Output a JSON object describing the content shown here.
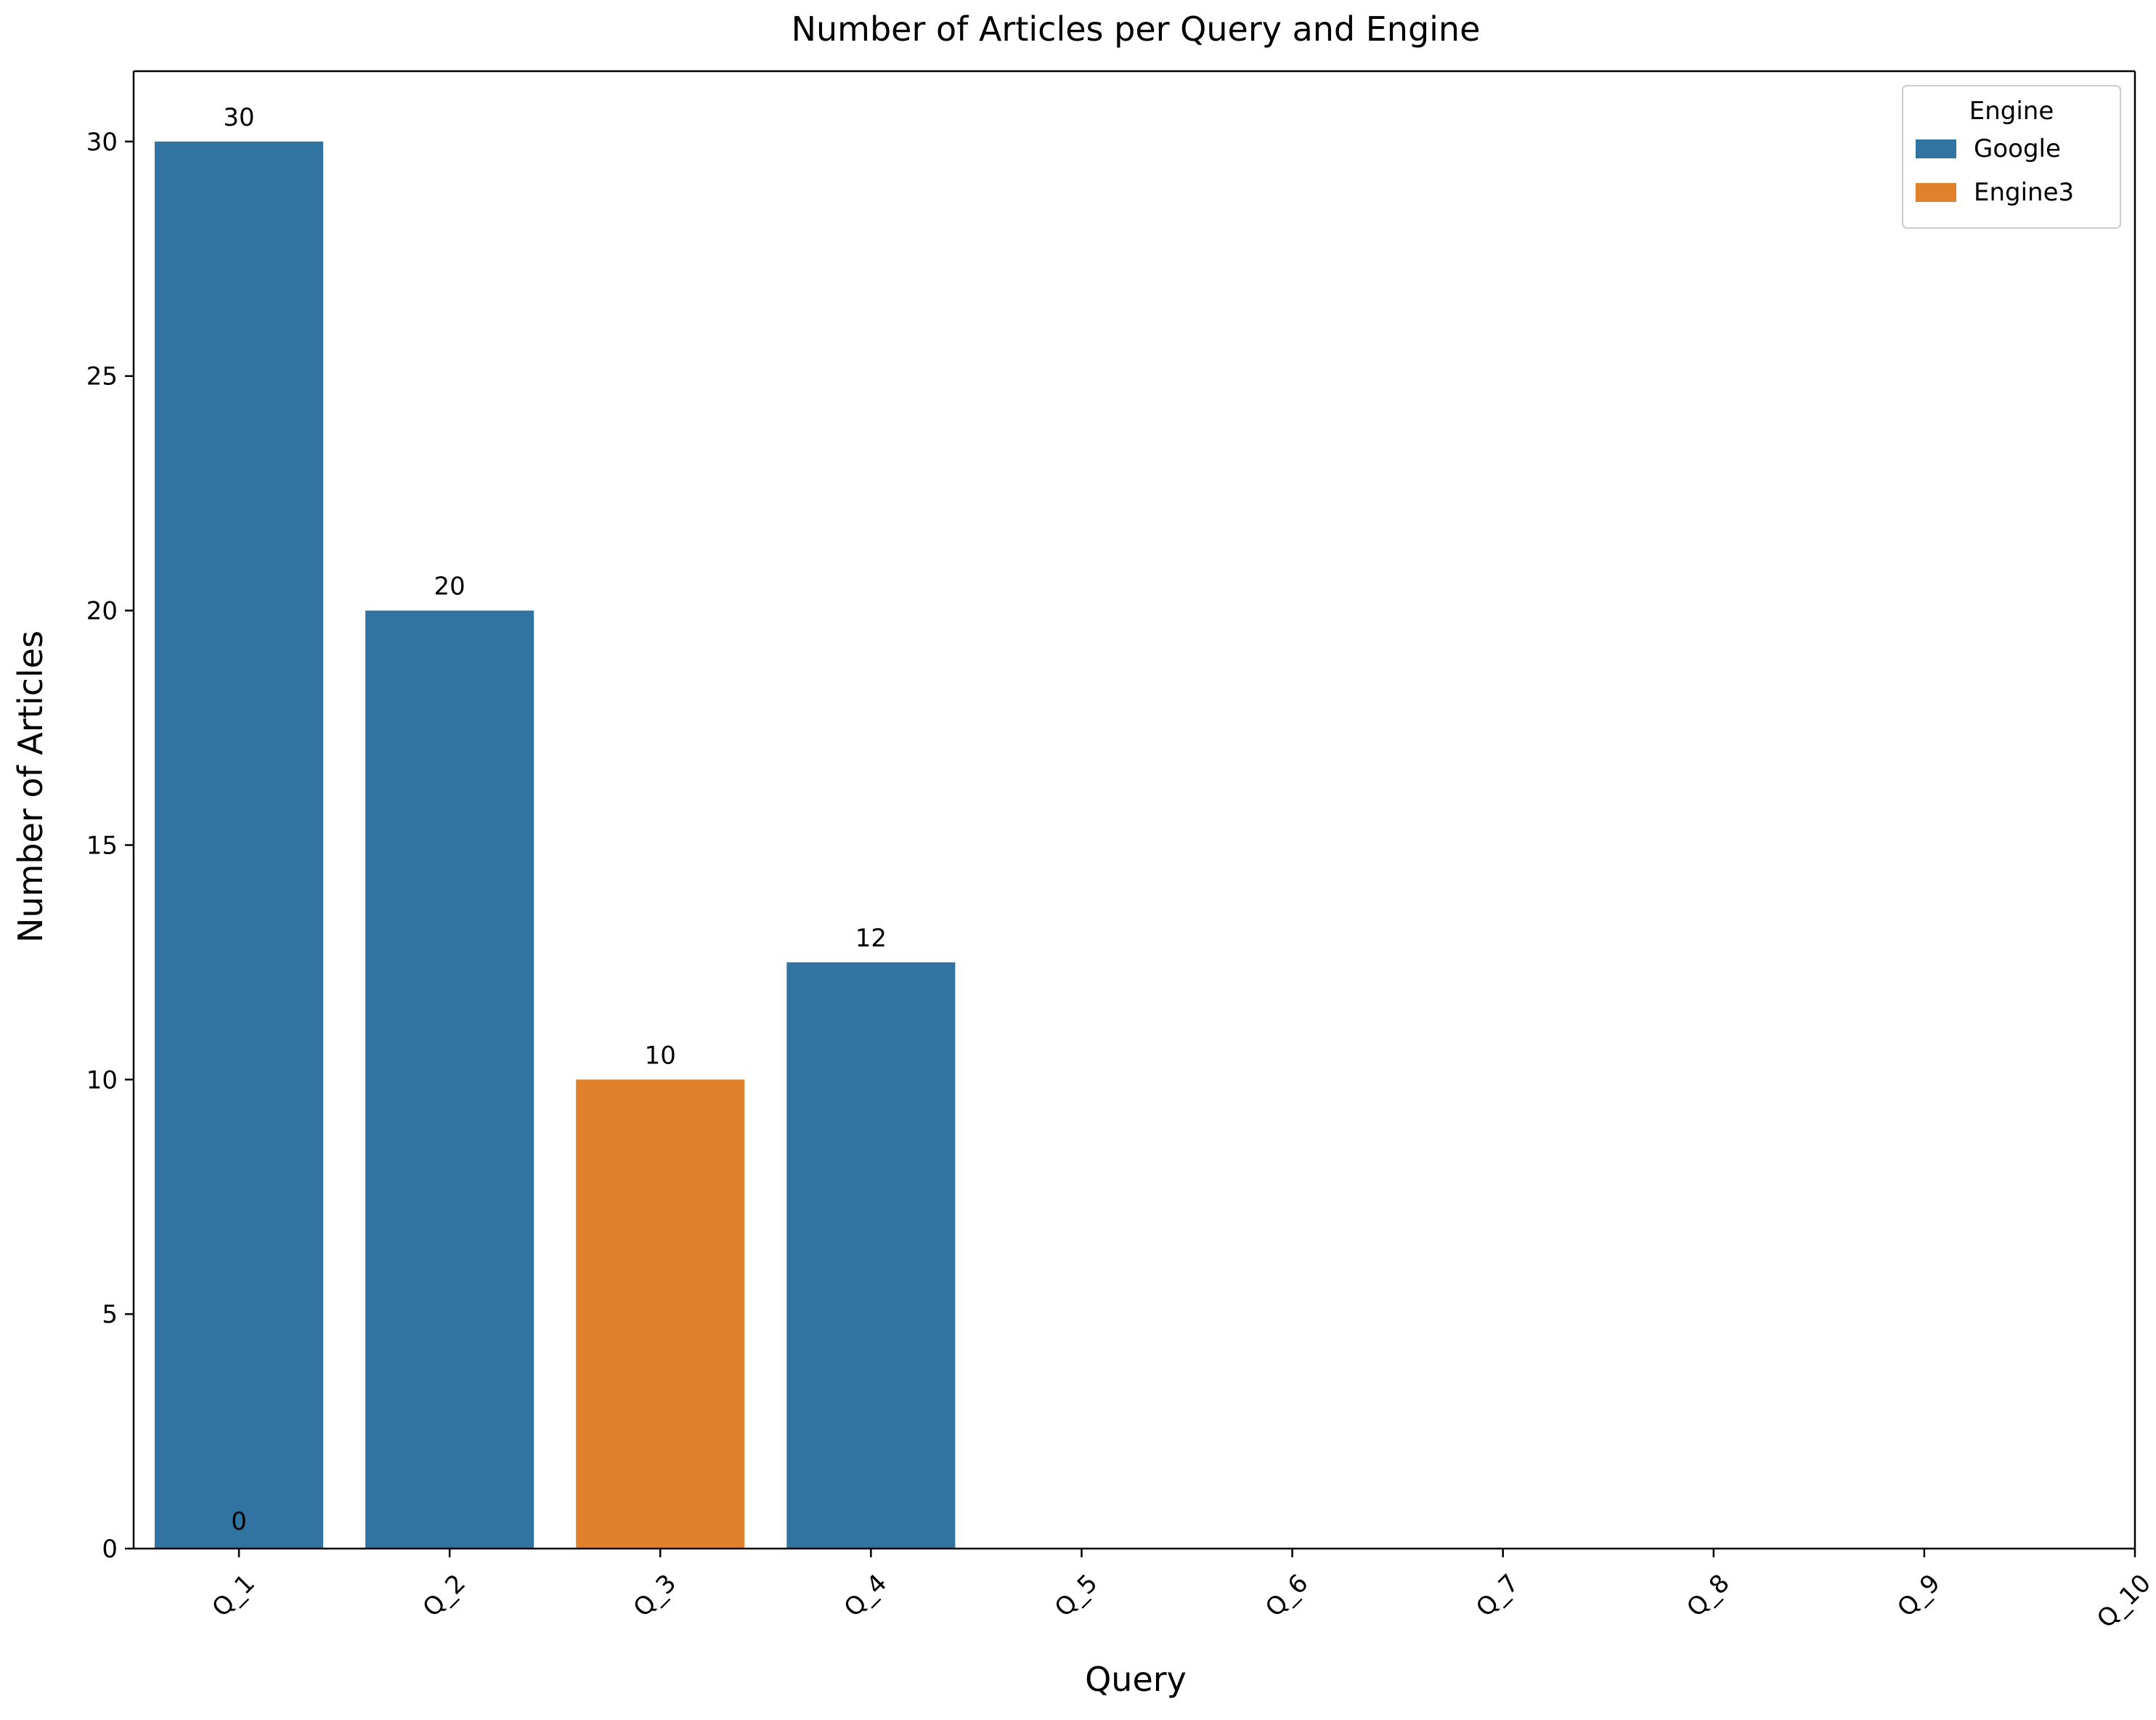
{
  "chart_data": {
    "type": "bar",
    "title": "Number of Articles per Query and Engine",
    "xlabel": "Query",
    "ylabel": "Number of Articles",
    "categories": [
      "Q_1",
      "Q_2",
      "Q_3",
      "Q_4",
      "Q_5",
      "Q_6",
      "Q_7",
      "Q_8",
      "Q_9",
      "Q_10"
    ],
    "bars": [
      {
        "category": "Q_1",
        "value": 30,
        "engine": "Google",
        "label": "30"
      },
      {
        "category": "Q_2",
        "value": 20,
        "engine": "Google",
        "label": "20"
      },
      {
        "category": "Q_3",
        "value": 10,
        "engine": "Engine3",
        "label": "10"
      },
      {
        "category": "Q_4",
        "value": 12.5,
        "engine": "Google",
        "label": "12"
      }
    ],
    "extra_labels": [
      {
        "category": "Q_1",
        "value": 0,
        "label": "0"
      }
    ],
    "yticks": [
      0,
      5,
      10,
      15,
      20,
      25,
      30
    ],
    "ylim": [
      0,
      31.5
    ],
    "grid": false,
    "legend": {
      "title": "Engine",
      "position": "top-right",
      "entries": [
        {
          "name": "Google",
          "color": "#3274a1"
        },
        {
          "name": "Engine3",
          "color": "#e1812c"
        }
      ]
    }
  }
}
